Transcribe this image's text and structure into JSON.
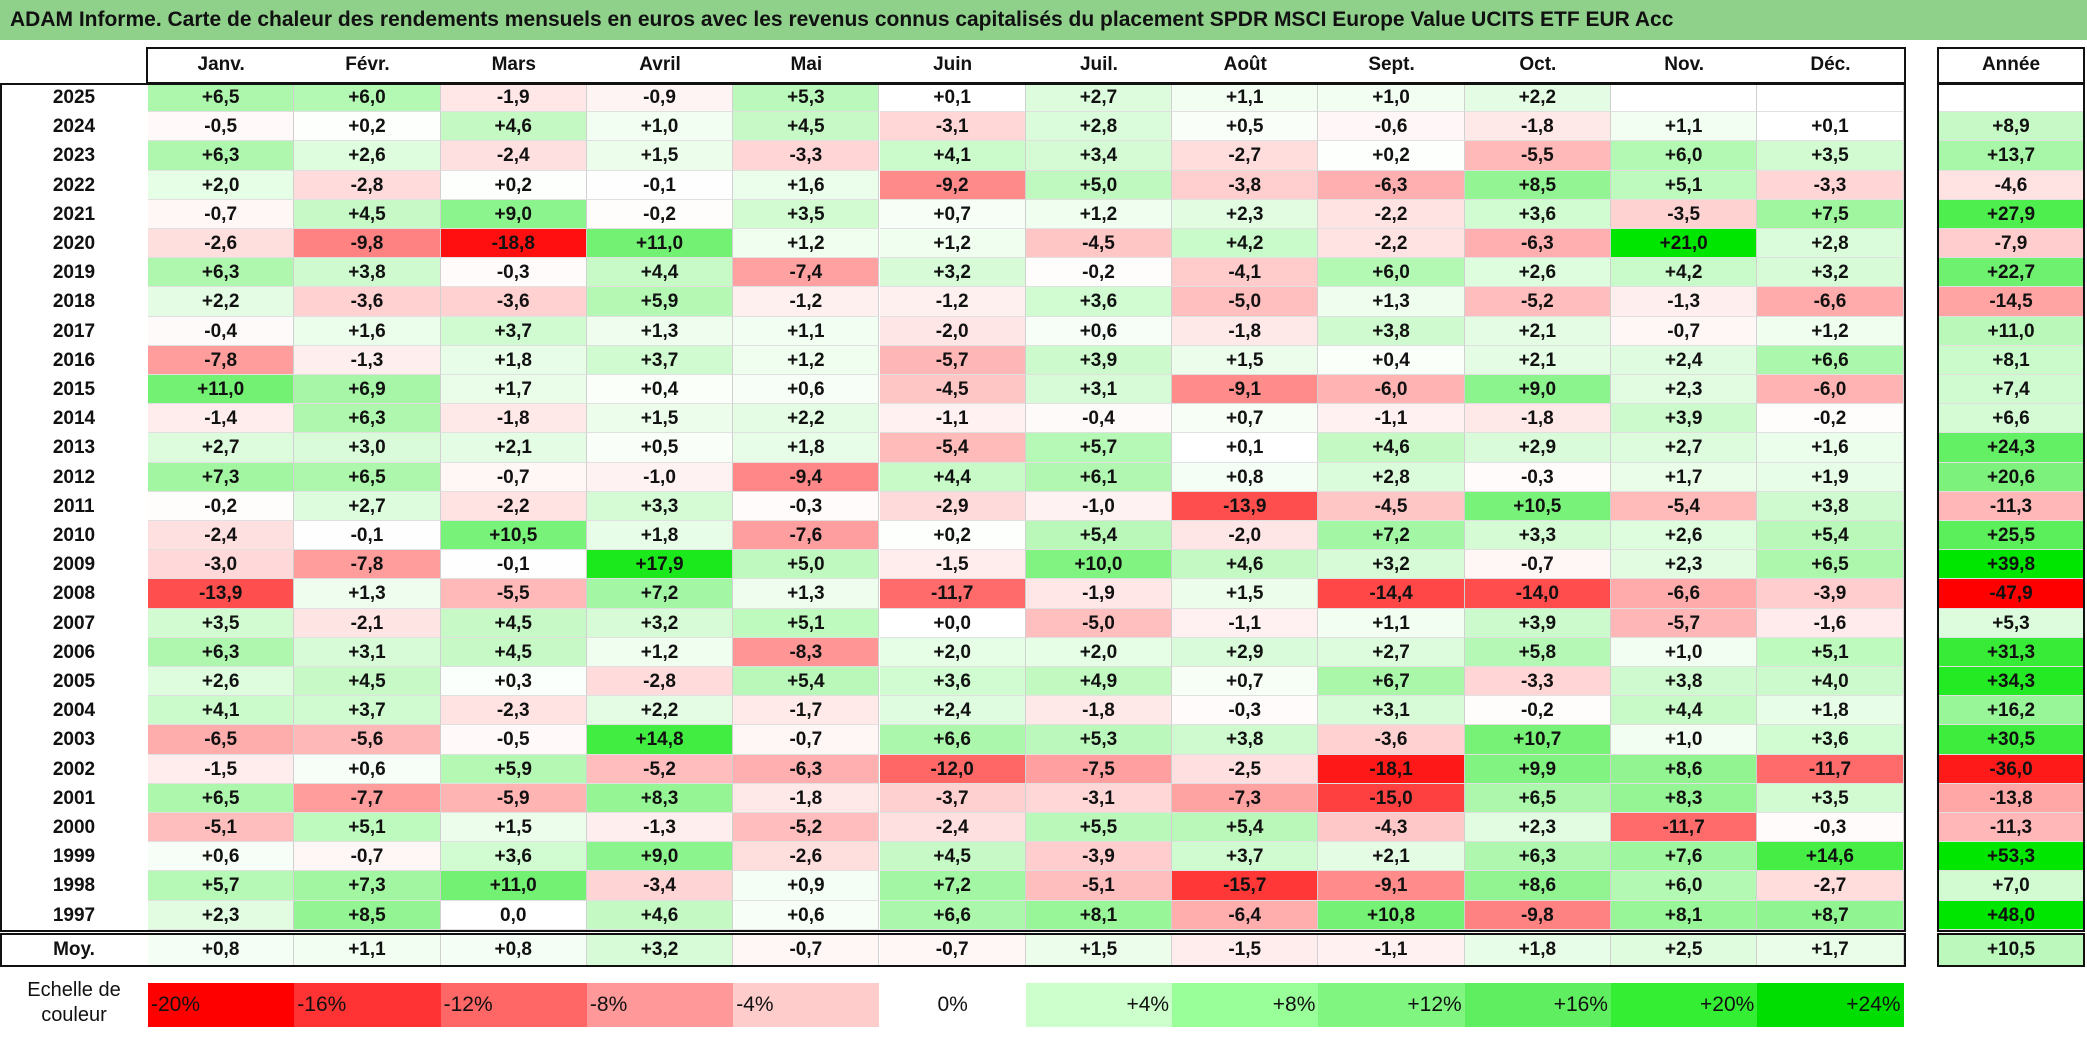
{
  "title": "ADAM Informe. Carte de chaleur des rendements mensuels en euros avec les revenus connus capitalisés du placement SPDR MSCI Europe Value UCITS ETF EUR Acc",
  "chart_data": {
    "type": "heatmap",
    "columns": [
      "Janv.",
      "Févr.",
      "Mars",
      "Avril",
      "Mai",
      "Juin",
      "Juil.",
      "Août",
      "Sept.",
      "Oct.",
      "Nov.",
      "Déc."
    ],
    "year_header": "Année",
    "avg_label": "Moy.",
    "scale_label_line1": "Echelle de",
    "scale_label_line2": "couleur",
    "rows": [
      {
        "year": "2025",
        "months": [
          "+6,5",
          "+6,0",
          "-1,9",
          "-0,9",
          "+5,3",
          "+0,1",
          "+2,7",
          "+1,1",
          "+1,0",
          "+2,2",
          "",
          ""
        ],
        "annual": ""
      },
      {
        "year": "2024",
        "months": [
          "-0,5",
          "+0,2",
          "+4,6",
          "+1,0",
          "+4,5",
          "-3,1",
          "+2,8",
          "+0,5",
          "-0,6",
          "-1,8",
          "+1,1",
          "+0,1"
        ],
        "annual": "+8,9"
      },
      {
        "year": "2023",
        "months": [
          "+6,3",
          "+2,6",
          "-2,4",
          "+1,5",
          "-3,3",
          "+4,1",
          "+3,4",
          "-2,7",
          "+0,2",
          "-5,5",
          "+6,0",
          "+3,5"
        ],
        "annual": "+13,7"
      },
      {
        "year": "2022",
        "months": [
          "+2,0",
          "-2,8",
          "+0,2",
          "-0,1",
          "+1,6",
          "-9,2",
          "+5,0",
          "-3,8",
          "-6,3",
          "+8,5",
          "+5,1",
          "-3,3"
        ],
        "annual": "-4,6"
      },
      {
        "year": "2021",
        "months": [
          "-0,7",
          "+4,5",
          "+9,0",
          "-0,2",
          "+3,5",
          "+0,7",
          "+1,2",
          "+2,3",
          "-2,2",
          "+3,6",
          "-3,5",
          "+7,5"
        ],
        "annual": "+27,9"
      },
      {
        "year": "2020",
        "months": [
          "-2,6",
          "-9,8",
          "-18,8",
          "+11,0",
          "+1,2",
          "+1,2",
          "-4,5",
          "+4,2",
          "-2,2",
          "-6,3",
          "+21,0",
          "+2,8"
        ],
        "annual": "-7,9"
      },
      {
        "year": "2019",
        "months": [
          "+6,3",
          "+3,8",
          "-0,3",
          "+4,4",
          "-7,4",
          "+3,2",
          "-0,2",
          "-4,1",
          "+6,0",
          "+2,6",
          "+4,2",
          "+3,2"
        ],
        "annual": "+22,7"
      },
      {
        "year": "2018",
        "months": [
          "+2,2",
          "-3,6",
          "-3,6",
          "+5,9",
          "-1,2",
          "-1,2",
          "+3,6",
          "-5,0",
          "+1,3",
          "-5,2",
          "-1,3",
          "-6,6"
        ],
        "annual": "-14,5"
      },
      {
        "year": "2017",
        "months": [
          "-0,4",
          "+1,6",
          "+3,7",
          "+1,3",
          "+1,1",
          "-2,0",
          "+0,6",
          "-1,8",
          "+3,8",
          "+2,1",
          "-0,7",
          "+1,2"
        ],
        "annual": "+11,0"
      },
      {
        "year": "2016",
        "months": [
          "-7,8",
          "-1,3",
          "+1,8",
          "+3,7",
          "+1,2",
          "-5,7",
          "+3,9",
          "+1,5",
          "+0,4",
          "+2,1",
          "+2,4",
          "+6,6"
        ],
        "annual": "+8,1"
      },
      {
        "year": "2015",
        "months": [
          "+11,0",
          "+6,9",
          "+1,7",
          "+0,4",
          "+0,6",
          "-4,5",
          "+3,1",
          "-9,1",
          "-6,0",
          "+9,0",
          "+2,3",
          "-6,0"
        ],
        "annual": "+7,4"
      },
      {
        "year": "2014",
        "months": [
          "-1,4",
          "+6,3",
          "-1,8",
          "+1,5",
          "+2,2",
          "-1,1",
          "-0,4",
          "+0,7",
          "-1,1",
          "-1,8",
          "+3,9",
          "-0,2"
        ],
        "annual": "+6,6"
      },
      {
        "year": "2013",
        "months": [
          "+2,7",
          "+3,0",
          "+2,1",
          "+0,5",
          "+1,8",
          "-5,4",
          "+5,7",
          "+0,1",
          "+4,6",
          "+2,9",
          "+2,7",
          "+1,6"
        ],
        "annual": "+24,3"
      },
      {
        "year": "2012",
        "months": [
          "+7,3",
          "+6,5",
          "-0,7",
          "-1,0",
          "-9,4",
          "+4,4",
          "+6,1",
          "+0,8",
          "+2,8",
          "-0,3",
          "+1,7",
          "+1,9"
        ],
        "annual": "+20,6"
      },
      {
        "year": "2011",
        "months": [
          "-0,2",
          "+2,7",
          "-2,2",
          "+3,3",
          "-0,3",
          "-2,9",
          "-1,0",
          "-13,9",
          "-4,5",
          "+10,5",
          "-5,4",
          "+3,8"
        ],
        "annual": "-11,3"
      },
      {
        "year": "2010",
        "months": [
          "-2,4",
          "-0,1",
          "+10,5",
          "+1,8",
          "-7,6",
          "+0,2",
          "+5,4",
          "-2,0",
          "+7,2",
          "+3,3",
          "+2,6",
          "+5,4"
        ],
        "annual": "+25,5"
      },
      {
        "year": "2009",
        "months": [
          "-3,0",
          "-7,8",
          "-0,1",
          "+17,9",
          "+5,0",
          "-1,5",
          "+10,0",
          "+4,6",
          "+3,2",
          "-0,7",
          "+2,3",
          "+6,5"
        ],
        "annual": "+39,8"
      },
      {
        "year": "2008",
        "months": [
          "-13,9",
          "+1,3",
          "-5,5",
          "+7,2",
          "+1,3",
          "-11,7",
          "-1,9",
          "+1,5",
          "-14,4",
          "-14,0",
          "-6,6",
          "-3,9"
        ],
        "annual": "-47,9"
      },
      {
        "year": "2007",
        "months": [
          "+3,5",
          "-2,1",
          "+4,5",
          "+3,2",
          "+5,1",
          "+0,0",
          "-5,0",
          "-1,1",
          "+1,1",
          "+3,9",
          "-5,7",
          "-1,6"
        ],
        "annual": "+5,3"
      },
      {
        "year": "2006",
        "months": [
          "+6,3",
          "+3,1",
          "+4,5",
          "+1,2",
          "-8,3",
          "+2,0",
          "+2,0",
          "+2,9",
          "+2,7",
          "+5,8",
          "+1,0",
          "+5,1"
        ],
        "annual": "+31,3"
      },
      {
        "year": "2005",
        "months": [
          "+2,6",
          "+4,5",
          "+0,3",
          "-2,8",
          "+5,4",
          "+3,6",
          "+4,9",
          "+0,7",
          "+6,7",
          "-3,3",
          "+3,8",
          "+4,0"
        ],
        "annual": "+34,3"
      },
      {
        "year": "2004",
        "months": [
          "+4,1",
          "+3,7",
          "-2,3",
          "+2,2",
          "-1,7",
          "+2,4",
          "-1,8",
          "-0,3",
          "+3,1",
          "-0,2",
          "+4,4",
          "+1,8"
        ],
        "annual": "+16,2"
      },
      {
        "year": "2003",
        "months": [
          "-6,5",
          "-5,6",
          "-0,5",
          "+14,8",
          "-0,7",
          "+6,6",
          "+5,3",
          "+3,8",
          "-3,6",
          "+10,7",
          "+1,0",
          "+3,6"
        ],
        "annual": "+30,5"
      },
      {
        "year": "2002",
        "months": [
          "-1,5",
          "+0,6",
          "+5,9",
          "-5,2",
          "-6,3",
          "-12,0",
          "-7,5",
          "-2,5",
          "-18,1",
          "+9,9",
          "+8,6",
          "-11,7"
        ],
        "annual": "-36,0"
      },
      {
        "year": "2001",
        "months": [
          "+6,5",
          "-7,7",
          "-5,9",
          "+8,3",
          "-1,8",
          "-3,7",
          "-3,1",
          "-7,3",
          "-15,0",
          "+6,5",
          "+8,3",
          "+3,5"
        ],
        "annual": "-13,8"
      },
      {
        "year": "2000",
        "months": [
          "-5,1",
          "+5,1",
          "+1,5",
          "-1,3",
          "-5,2",
          "-2,4",
          "+5,5",
          "+5,4",
          "-4,3",
          "+2,3",
          "-11,7",
          "-0,3"
        ],
        "annual": "-11,3"
      },
      {
        "year": "1999",
        "months": [
          "+0,6",
          "-0,7",
          "+3,6",
          "+9,0",
          "-2,6",
          "+4,5",
          "-3,9",
          "+3,7",
          "+2,1",
          "+6,3",
          "+7,6",
          "+14,6"
        ],
        "annual": "+53,3"
      },
      {
        "year": "1998",
        "months": [
          "+5,7",
          "+7,3",
          "+11,0",
          "-3,4",
          "+0,9",
          "+7,2",
          "-5,1",
          "-15,7",
          "-9,1",
          "+8,6",
          "+6,0",
          "-2,7"
        ],
        "annual": "+7,0"
      },
      {
        "year": "1997",
        "months": [
          "+2,3",
          "+8,5",
          "0,0",
          "+4,6",
          "+0,6",
          "+6,6",
          "+8,1",
          "-6,4",
          "+10,8",
          "-9,8",
          "+8,1",
          "+8,7"
        ],
        "annual": "+48,0"
      }
    ],
    "average": {
      "months": [
        "+0,8",
        "+1,1",
        "+0,8",
        "+3,2",
        "-0,7",
        "-0,7",
        "+1,5",
        "-1,5",
        "-1,1",
        "+1,8",
        "+2,5",
        "+1,7"
      ],
      "annual": "+10,5"
    },
    "color_scale": [
      {
        "label": "-20%",
        "value": -20,
        "color": "#ff0000"
      },
      {
        "label": "-16%",
        "value": -16,
        "color": "#ff3333"
      },
      {
        "label": "-12%",
        "value": -12,
        "color": "#ff6666"
      },
      {
        "label": "-8%",
        "value": -8,
        "color": "#ff9999"
      },
      {
        "label": "-4%",
        "value": -4,
        "color": "#ffcccc"
      },
      {
        "label": "0%",
        "value": 0,
        "color": "#ffffff"
      },
      {
        "label": "+4%",
        "value": 4,
        "color": "#ccffcc"
      },
      {
        "label": "+8%",
        "value": 8,
        "color": "#99ff99"
      },
      {
        "label": "+12%",
        "value": 12,
        "color": "#80f580"
      },
      {
        "label": "+16%",
        "value": 16,
        "color": "#5fee5f"
      },
      {
        "label": "+20%",
        "value": 20,
        "color": "#33ee33"
      },
      {
        "label": "+24%",
        "value": 24,
        "color": "#00dd00"
      }
    ],
    "annual_scale": {
      "min": -40,
      "max": 40
    }
  }
}
